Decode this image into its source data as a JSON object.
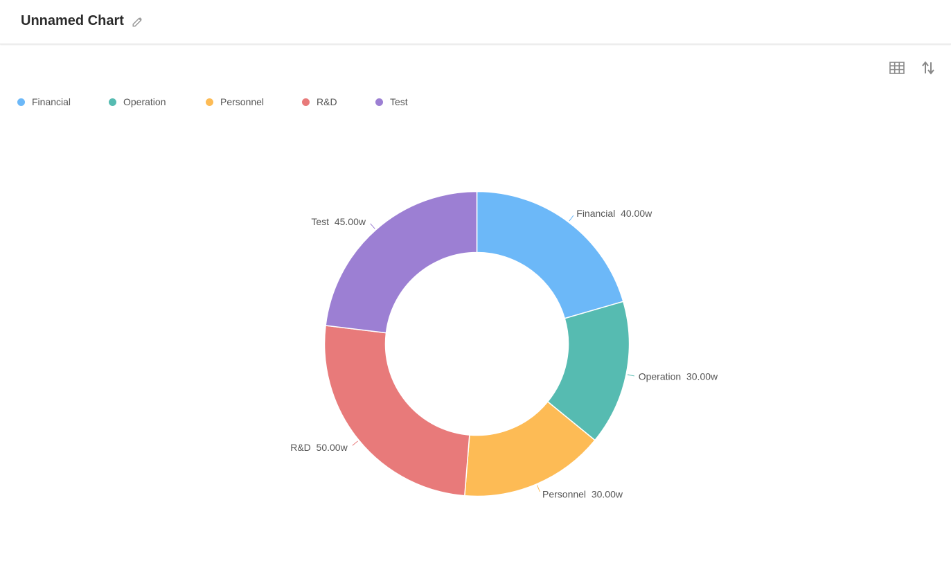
{
  "header": {
    "title": "Unnamed Chart"
  },
  "toolbar": {
    "table_icon": "table-icon",
    "sort_icon": "sort-arrows-icon",
    "edit_icon": "pencil-icon"
  },
  "chart_data": {
    "type": "pie",
    "variant": "donut",
    "unit_suffix": "w",
    "legend_position": "top-left",
    "categories": [
      "Financial",
      "Operation",
      "Personnel",
      "R&D",
      "Test"
    ],
    "values": [
      40.0,
      30.0,
      30.0,
      50.0,
      45.0
    ],
    "labels": [
      "40.00w",
      "30.00w",
      "30.00w",
      "50.00w",
      "45.00w"
    ],
    "colors": [
      "#6cb8f8",
      "#56bbb1",
      "#fdbb55",
      "#e87a7a",
      "#9c7fd3"
    ]
  }
}
